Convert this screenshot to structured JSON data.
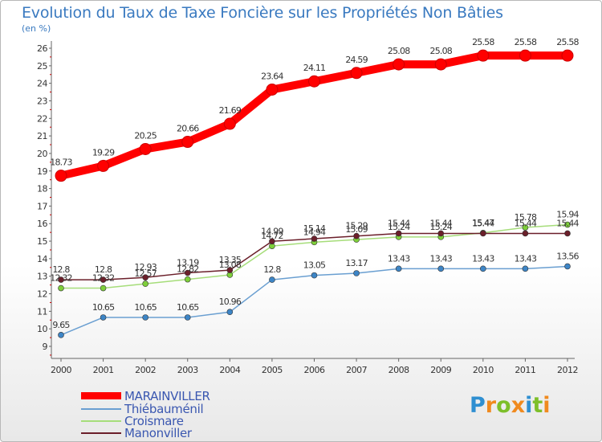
{
  "chart_data": {
    "type": "line",
    "title": "Evolution du Taux de Taxe Foncière sur les Propriétés Non Bâties",
    "ylabel": "(en %)",
    "xlabel": "",
    "ylim": [
      9,
      26
    ],
    "yticks": [
      "9",
      "10",
      "11",
      "12",
      "13",
      "14",
      "15",
      "16",
      "17",
      "18",
      "19",
      "20",
      "21",
      "22",
      "23",
      "24",
      "25",
      "26"
    ],
    "categories": [
      "2000",
      "2001",
      "2002",
      "2003",
      "2004",
      "2005",
      "2006",
      "2007",
      "2008",
      "2009",
      "2010",
      "2011",
      "2012"
    ],
    "series": [
      {
        "name": "MARAINVILLER",
        "color": "#ff0000",
        "values": [
          18.73,
          19.29,
          20.25,
          20.66,
          21.69,
          23.64,
          24.11,
          24.59,
          25.08,
          25.08,
          25.58,
          25.58,
          25.58
        ],
        "labels": [
          "18.73",
          "19.29",
          "20.25",
          "20.66",
          "21.69",
          "23.64",
          "24.11",
          "24.59",
          "25.08",
          "25.08",
          "25.58",
          "25.58",
          "25.58"
        ]
      },
      {
        "name": "Thiébauménil",
        "color": "#6a9fd1",
        "marker": "#3d85c6",
        "values": [
          9.65,
          10.65,
          10.65,
          10.65,
          10.96,
          12.8,
          13.05,
          13.17,
          13.43,
          13.43,
          13.43,
          13.43,
          13.56
        ],
        "labels": [
          "9.65",
          "10.65",
          "10.65",
          "10.65",
          "10.96",
          "12.8",
          "13.05",
          "13.17",
          "13.43",
          "13.43",
          "13.43",
          "13.43",
          "13.56"
        ]
      },
      {
        "name": "Croismare",
        "color": "#a6dd7a",
        "marker": "#7ecf3a",
        "values": [
          12.32,
          12.32,
          12.57,
          12.82,
          13.08,
          14.72,
          14.94,
          15.09,
          15.24,
          15.24,
          15.47,
          15.78,
          15.94
        ],
        "labels": [
          "12.32",
          "12.32",
          "12.57",
          "12.82",
          "13.08",
          "14.72",
          "14.94",
          "15.09",
          "15.24",
          "15.24",
          "15.47",
          "15.78",
          "15.94"
        ]
      },
      {
        "name": "Manonviller",
        "color": "#6b1f2a",
        "marker": "#6b1f2a",
        "values": [
          12.8,
          12.8,
          12.93,
          13.19,
          13.35,
          14.99,
          15.14,
          15.29,
          15.44,
          15.44,
          15.44,
          15.44,
          15.44
        ],
        "labels": [
          "12.8",
          "12.8",
          "12.93",
          "13.19",
          "13.35",
          "14.99",
          "15.14",
          "15.29",
          "15.44",
          "15.44",
          "15.44",
          "15.44",
          "15.44"
        ]
      }
    ],
    "grid": false,
    "legend_position": "bottom-left"
  },
  "colors": {
    "title": "#3a7ac0",
    "axis": "#555555",
    "legend_text": "#3a57b0"
  },
  "logo": {
    "letters": [
      "P",
      "r",
      "o",
      "x",
      "i",
      "t",
      "i"
    ],
    "colors": [
      "#2f8fd1",
      "#f08a1e",
      "#7dbf2a",
      "#f08a1e",
      "#2f8fd1",
      "#7dbf2a",
      "#f08a1e"
    ]
  }
}
